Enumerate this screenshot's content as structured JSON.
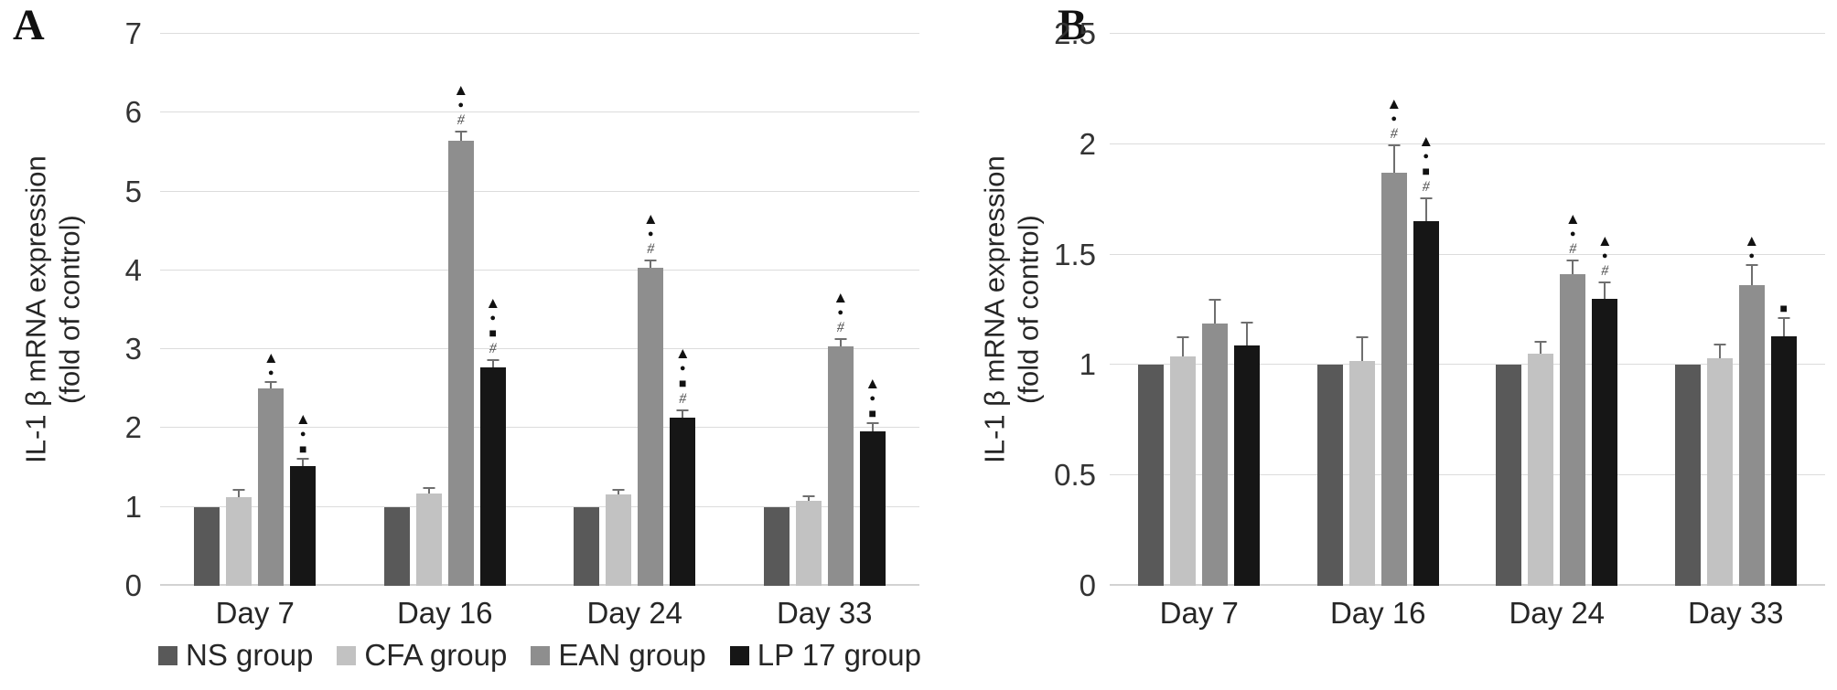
{
  "panels": [
    {
      "letter": "A",
      "y_axis_title_line1": "IL-1 β mRNA expression",
      "y_axis_title_line2": "(fold of control)"
    },
    {
      "letter": "B",
      "y_axis_title_line1": "IL-1 β mRNA expression",
      "y_axis_title_line2": "(fold of control)"
    }
  ],
  "legend": {
    "items": [
      {
        "label": "NS group",
        "color": "#595959"
      },
      {
        "label": "CFA group",
        "color": "#c2c2c2"
      },
      {
        "label": "EAN group",
        "color": "#8e8e8e"
      },
      {
        "label": "LP 17 group",
        "color": "#161616"
      }
    ]
  },
  "symbol_glyphs": {
    "triangle": "▲",
    "dot": "●",
    "square": "■",
    "hash": "#"
  },
  "chart_data": [
    {
      "type": "bar",
      "panel": "A",
      "title": "",
      "xlabel": "",
      "ylabel": "IL-1 β mRNA expression (fold of control)",
      "ylim": [
        0,
        7
      ],
      "yticks": [
        "0",
        "1",
        "2",
        "3",
        "4",
        "5",
        "6",
        "7"
      ],
      "grid": true,
      "legend_position": "bottom",
      "categories": [
        "Day 7",
        "Day 16",
        "Day 24",
        "Day 33"
      ],
      "series": [
        {
          "name": "NS group",
          "color": "#595959",
          "values": [
            1.0,
            1.0,
            1.0,
            1.0
          ],
          "errors": [
            0,
            0,
            0,
            0
          ],
          "markers": [
            [],
            [],
            [],
            []
          ]
        },
        {
          "name": "CFA group",
          "color": "#c2c2c2",
          "values": [
            1.13,
            1.17,
            1.16,
            1.08
          ],
          "errors": [
            0.07,
            0.06,
            0.05,
            0.05
          ],
          "markers": [
            [],
            [],
            [],
            []
          ]
        },
        {
          "name": "EAN group",
          "color": "#8e8e8e",
          "values": [
            2.5,
            5.65,
            4.03,
            3.04
          ],
          "errors": [
            0.07,
            0.1,
            0.09,
            0.08
          ],
          "markers": [
            [
              "triangle",
              "dot"
            ],
            [
              "triangle",
              "dot",
              "hash"
            ],
            [
              "triangle",
              "dot",
              "hash"
            ],
            [
              "triangle",
              "dot",
              "hash"
            ]
          ]
        },
        {
          "name": "LP 17 group",
          "color": "#161616",
          "values": [
            1.52,
            2.77,
            2.13,
            1.96
          ],
          "errors": [
            0.08,
            0.08,
            0.08,
            0.09
          ],
          "markers": [
            [
              "triangle",
              "dot",
              "square"
            ],
            [
              "triangle",
              "dot",
              "square",
              "hash"
            ],
            [
              "triangle",
              "dot",
              "square",
              "hash"
            ],
            [
              "triangle",
              "dot",
              "square"
            ]
          ]
        }
      ]
    },
    {
      "type": "bar",
      "panel": "B",
      "title": "",
      "xlabel": "",
      "ylabel": "IL-1 β mRNA expression (fold of control)",
      "ylim": [
        0,
        2.5
      ],
      "yticks": [
        "0",
        "0.5",
        "1",
        "1.5",
        "2",
        "2.5"
      ],
      "grid": true,
      "legend_position": "none",
      "categories": [
        "Day 7",
        "Day 16",
        "Day 24",
        "Day 33"
      ],
      "series": [
        {
          "name": "NS group",
          "color": "#595959",
          "values": [
            1.0,
            1.0,
            1.0,
            1.0
          ],
          "errors": [
            0,
            0,
            0,
            0
          ],
          "markers": [
            [],
            [],
            [],
            []
          ]
        },
        {
          "name": "CFA group",
          "color": "#c2c2c2",
          "values": [
            1.04,
            1.02,
            1.05,
            1.03
          ],
          "errors": [
            0.08,
            0.1,
            0.05,
            0.06
          ],
          "markers": [
            [],
            [],
            [],
            []
          ]
        },
        {
          "name": "EAN group",
          "color": "#8e8e8e",
          "values": [
            1.19,
            1.87,
            1.41,
            1.36
          ],
          "errors": [
            0.1,
            0.12,
            0.06,
            0.09
          ],
          "markers": [
            [],
            [
              "triangle",
              "dot",
              "hash"
            ],
            [
              "triangle",
              "dot",
              "hash"
            ],
            [
              "triangle",
              "dot"
            ]
          ]
        },
        {
          "name": "LP 17 group",
          "color": "#161616",
          "values": [
            1.09,
            1.65,
            1.3,
            1.13
          ],
          "errors": [
            0.1,
            0.1,
            0.07,
            0.08
          ],
          "markers": [
            [],
            [
              "triangle",
              "dot",
              "square",
              "hash"
            ],
            [
              "triangle",
              "dot",
              "hash"
            ],
            [
              "square"
            ]
          ]
        }
      ]
    }
  ]
}
